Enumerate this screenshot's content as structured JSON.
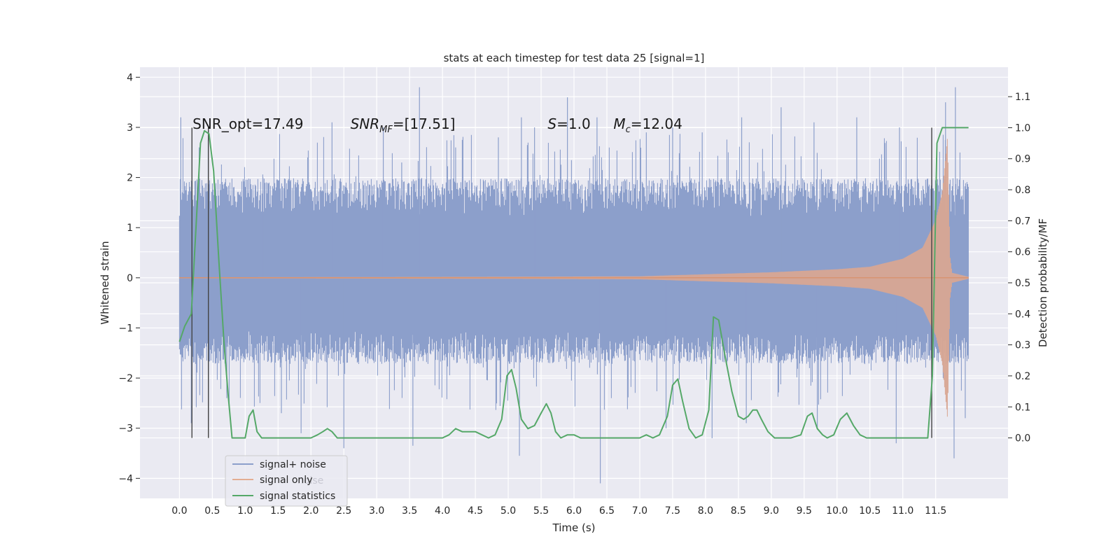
{
  "chart_data": {
    "type": "line",
    "title": "stats at each timestep for test data 25 [signal=1]",
    "xlabel": "Time (s)",
    "ylabel": "Whitened strain",
    "y2label": "Detection probability/MF",
    "xlim": [
      -0.6,
      12.6
    ],
    "ylim": [
      -4.4,
      4.2
    ],
    "y2lim": [
      -0.195,
      1.195
    ],
    "x_ticks": [
      "0.0",
      "0.5",
      "1.0",
      "1.5",
      "2.0",
      "2.5",
      "3.0",
      "3.5",
      "4.0",
      "4.5",
      "5.0",
      "5.5",
      "6.0",
      "6.5",
      "7.0",
      "7.5",
      "8.0",
      "8.5",
      "9.0",
      "9.5",
      "10.0",
      "10.5",
      "11.0",
      "11.5"
    ],
    "y_ticks": [
      "4",
      "3",
      "2",
      "1",
      "0",
      "−1",
      "−2",
      "−3",
      "−4"
    ],
    "y2_ticks": [
      "1.1",
      "1.0",
      "0.9",
      "0.8",
      "0.7",
      "0.6",
      "0.5",
      "0.4",
      "0.3",
      "0.2",
      "0.1",
      "0.0"
    ],
    "grid": true,
    "legend_placement": "lower-left",
    "annotations": [
      {
        "text": "SNR_opt=17.49",
        "x": 0.2,
        "y": 3.0
      },
      {
        "text": "SNR",
        "sub": "MF",
        "rest": "=[17.51]",
        "italic_prefix": true,
        "x": 2.6,
        "y": 3.0
      },
      {
        "text": "S",
        "rest": "=1.0",
        "italic_prefix": true,
        "x": 5.6,
        "y": 3.0
      },
      {
        "text": "M",
        "sub": "c",
        "rest": "=12.04",
        "italic_prefix": true,
        "x": 6.6,
        "y": 3.0
      }
    ],
    "vertical_lines": [
      0.19,
      0.44,
      11.44
    ],
    "series": [
      {
        "name": "signal+ noise",
        "color": "#8c9fcb",
        "t_range": [
          0.0,
          12.0
        ],
        "envelope_typical": [
          -1.4,
          1.75
        ],
        "spikes": [
          [
            0.02,
            3.2
          ],
          [
            0.3,
            2.6
          ],
          [
            1.27,
            2.0
          ],
          [
            1.95,
            2.4
          ],
          [
            2.32,
            3.1
          ],
          [
            3.1,
            3.0
          ],
          [
            3.38,
            2.3
          ],
          [
            3.65,
            3.8
          ],
          [
            4.2,
            2.6
          ],
          [
            4.85,
            2.8
          ],
          [
            5.2,
            3.2
          ],
          [
            5.4,
            3.0
          ],
          [
            5.9,
            3.6
          ],
          [
            6.35,
            3.2
          ],
          [
            7.1,
            2.9
          ],
          [
            7.5,
            3.0
          ],
          [
            7.95,
            2.9
          ],
          [
            8.55,
            3.2
          ],
          [
            9.15,
            3.4
          ],
          [
            9.65,
            3.1
          ],
          [
            10.3,
            3.2
          ],
          [
            10.95,
            3.0
          ],
          [
            11.65,
            3.5
          ],
          [
            11.8,
            3.8
          ],
          [
            0.18,
            -2.9
          ],
          [
            0.44,
            -2.85
          ],
          [
            0.72,
            -2.4
          ],
          [
            1.55,
            -2.7
          ],
          [
            1.85,
            -3.1
          ],
          [
            2.5,
            -3.4
          ],
          [
            3.55,
            -3.35
          ],
          [
            5.17,
            -3.55
          ],
          [
            6.4,
            -4.1
          ],
          [
            7.4,
            -3.0
          ],
          [
            8.1,
            -3.2
          ],
          [
            8.62,
            -2.9
          ],
          [
            9.7,
            -3.0
          ],
          [
            10.9,
            -3.3
          ],
          [
            11.78,
            -3.6
          ],
          [
            11.95,
            -2.8
          ]
        ]
      },
      {
        "name": "signal only",
        "color": "#dd8452",
        "t_start": 0.0,
        "t_merger": 11.7,
        "t_end": 12.0,
        "amp_points": [
          [
            0.0,
            0.01
          ],
          [
            5.0,
            0.02
          ],
          [
            7.0,
            0.03
          ],
          [
            8.0,
            0.07
          ],
          [
            9.0,
            0.11
          ],
          [
            10.0,
            0.17
          ],
          [
            10.5,
            0.22
          ],
          [
            11.0,
            0.38
          ],
          [
            11.3,
            0.6
          ],
          [
            11.5,
            1.15
          ],
          [
            11.6,
            1.7
          ],
          [
            11.68,
            2.8
          ],
          [
            11.72,
            0.4
          ],
          [
            11.75,
            0.1
          ],
          [
            12.0,
            0.02
          ]
        ]
      },
      {
        "name": "signal statistics",
        "color": "#55a868",
        "axis": "right",
        "x": [
          0.0,
          0.08,
          0.18,
          0.25,
          0.32,
          0.38,
          0.45,
          0.52,
          0.6,
          0.68,
          0.74,
          0.8,
          0.9,
          1.0,
          1.06,
          1.12,
          1.18,
          1.25,
          1.4,
          1.6,
          1.8,
          2.0,
          2.1,
          2.18,
          2.25,
          2.32,
          2.4,
          2.6,
          2.8,
          3.0,
          3.2,
          3.4,
          3.6,
          3.8,
          4.0,
          4.1,
          4.2,
          4.3,
          4.4,
          4.5,
          4.6,
          4.7,
          4.8,
          4.9,
          4.98,
          5.05,
          5.12,
          5.2,
          5.3,
          5.4,
          5.5,
          5.58,
          5.65,
          5.72,
          5.8,
          5.9,
          6.0,
          6.1,
          6.2,
          6.4,
          6.6,
          6.8,
          7.0,
          7.1,
          7.2,
          7.3,
          7.42,
          7.5,
          7.58,
          7.65,
          7.75,
          7.85,
          7.95,
          8.05,
          8.12,
          8.2,
          8.3,
          8.4,
          8.5,
          8.58,
          8.65,
          8.72,
          8.78,
          8.85,
          8.95,
          9.05,
          9.15,
          9.3,
          9.45,
          9.55,
          9.62,
          9.7,
          9.78,
          9.85,
          9.95,
          10.05,
          10.15,
          10.25,
          10.35,
          10.45,
          10.6,
          10.8,
          11.0,
          11.2,
          11.38,
          11.45,
          11.52,
          11.6,
          11.75,
          12.0
        ],
        "values": [
          0.31,
          0.36,
          0.4,
          0.67,
          0.95,
          0.99,
          0.98,
          0.86,
          0.57,
          0.3,
          0.14,
          0.0,
          0.0,
          0.0,
          0.07,
          0.09,
          0.02,
          0.0,
          0.0,
          0.0,
          0.0,
          0.0,
          0.01,
          0.02,
          0.03,
          0.02,
          0.0,
          0.0,
          0.0,
          0.0,
          0.0,
          0.0,
          0.0,
          0.0,
          0.0,
          0.01,
          0.03,
          0.02,
          0.02,
          0.02,
          0.01,
          0.0,
          0.01,
          0.06,
          0.2,
          0.22,
          0.16,
          0.06,
          0.03,
          0.04,
          0.08,
          0.11,
          0.08,
          0.02,
          0.0,
          0.01,
          0.01,
          0.0,
          0.0,
          0.0,
          0.0,
          0.0,
          0.0,
          0.01,
          0.0,
          0.01,
          0.07,
          0.17,
          0.19,
          0.12,
          0.03,
          0.0,
          0.01,
          0.09,
          0.39,
          0.38,
          0.26,
          0.15,
          0.07,
          0.06,
          0.07,
          0.09,
          0.09,
          0.06,
          0.02,
          0.0,
          0.0,
          0.0,
          0.01,
          0.07,
          0.08,
          0.03,
          0.01,
          0.0,
          0.01,
          0.06,
          0.08,
          0.04,
          0.01,
          0.0,
          0.0,
          0.0,
          0.0,
          0.0,
          0.0,
          0.2,
          0.95,
          1.0,
          1.0,
          1.0
        ]
      }
    ]
  },
  "legend": {
    "items": [
      {
        "label": "signal+ noise",
        "color": "#8c9fcb"
      },
      {
        "label": "signal only",
        "color": "#dd8452"
      },
      {
        "label": "signal statistics",
        "color": "#55a868"
      }
    ],
    "ghost_text": "noise"
  }
}
